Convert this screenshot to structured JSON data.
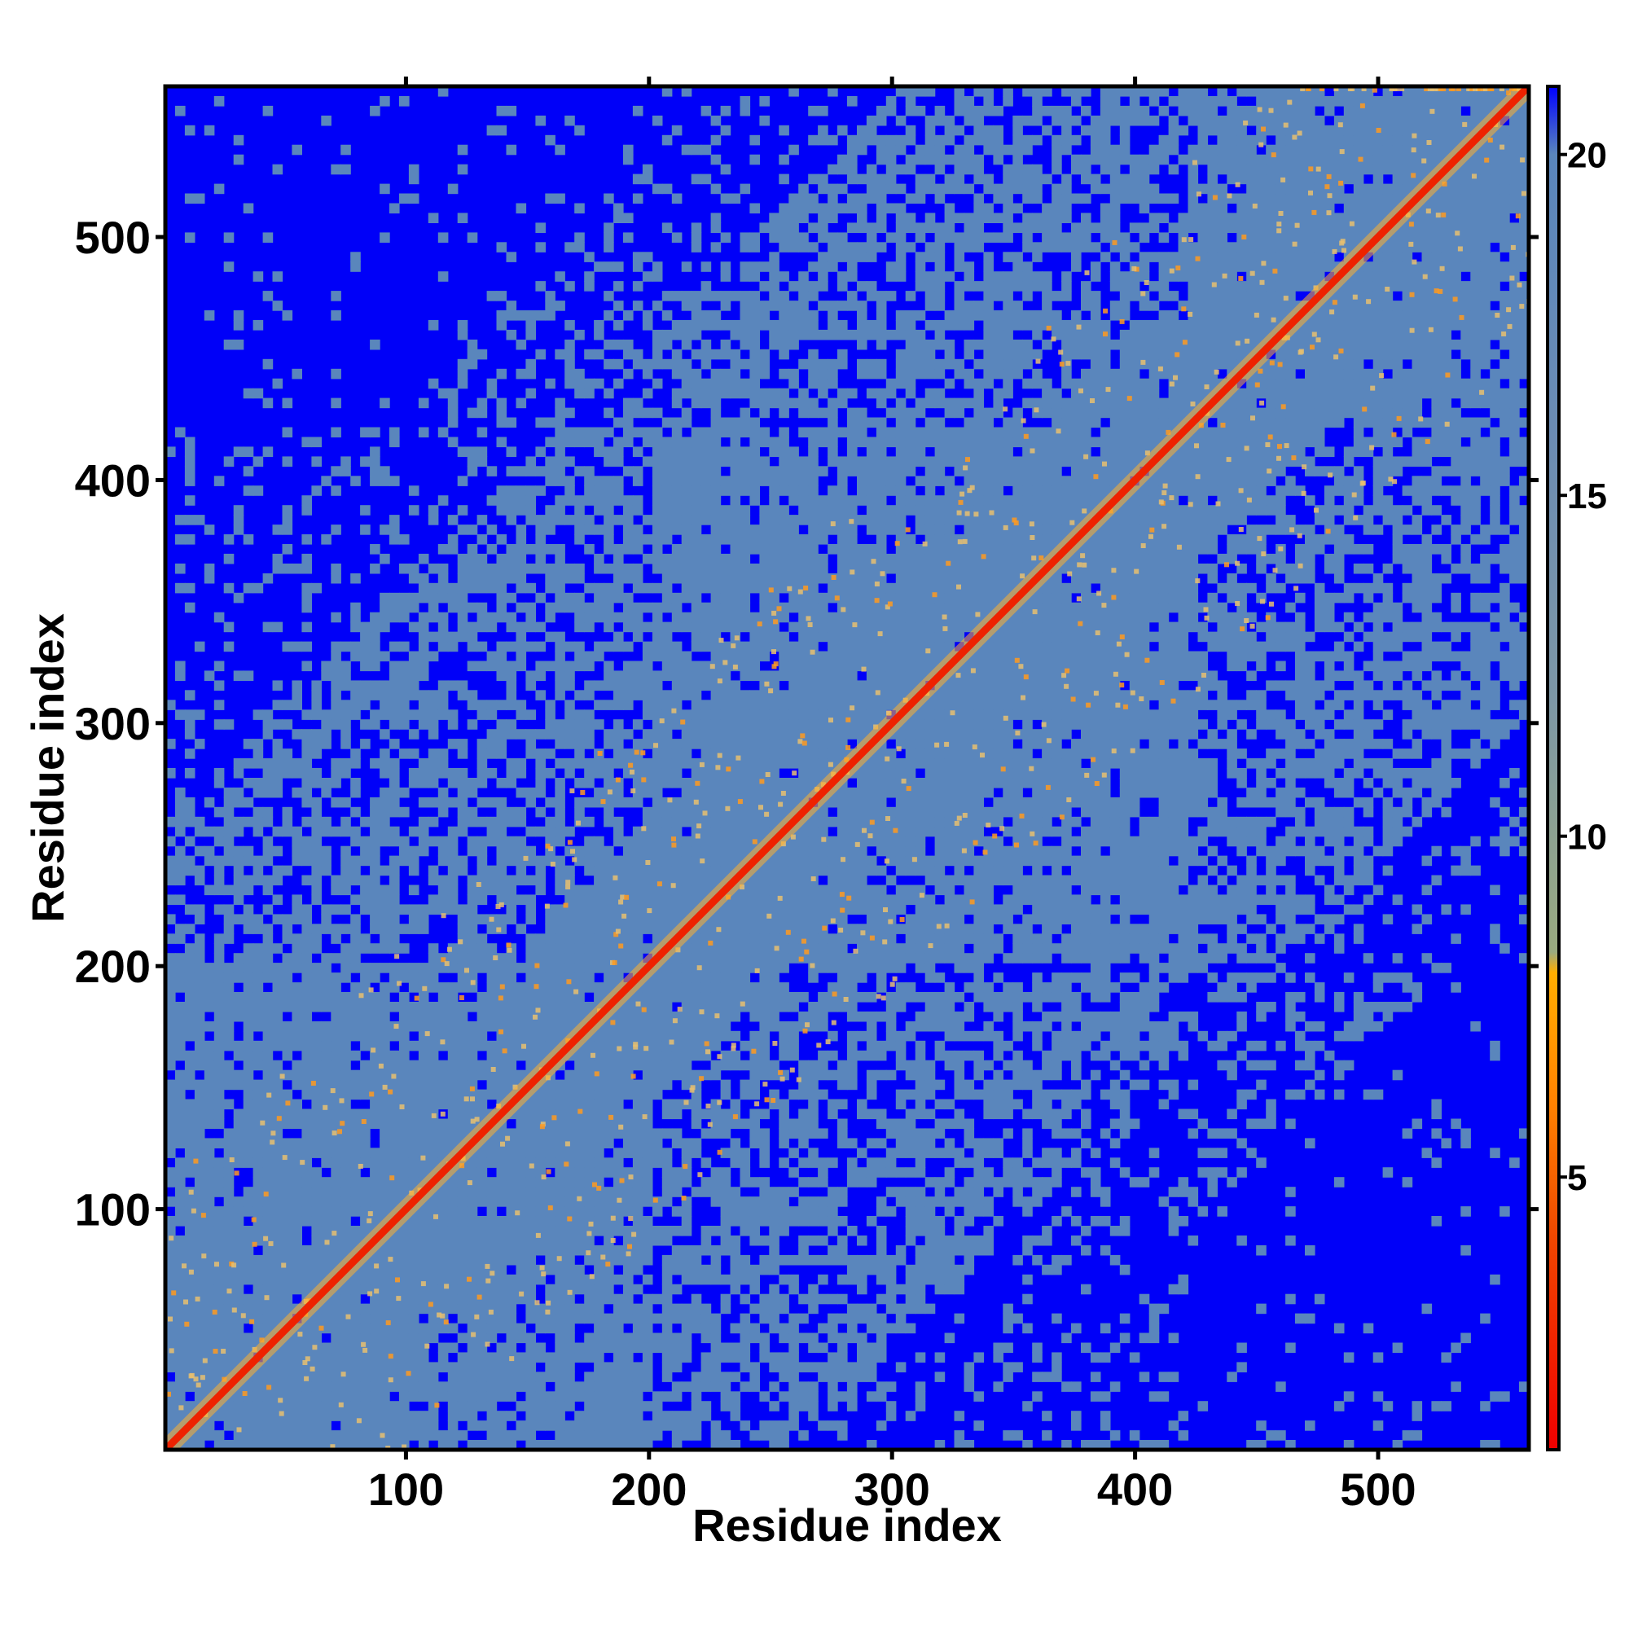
{
  "chart_data": {
    "type": "heatmap",
    "title": "",
    "xlabel": "Residue index",
    "ylabel": "Residue index",
    "xlim": [
      1,
      562
    ],
    "ylim": [
      1,
      562
    ],
    "x_ticks": [
      100,
      200,
      300,
      400,
      500
    ],
    "y_ticks": [
      100,
      200,
      300,
      400,
      500
    ],
    "x_tick_labels": [
      "100",
      "200",
      "300",
      "400",
      "500"
    ],
    "y_tick_labels": [
      "100",
      "200",
      "300",
      "400",
      "500"
    ],
    "colorbar": {
      "range": [
        1,
        21
      ],
      "ticks": [
        5,
        10,
        15,
        20
      ],
      "tick_labels": [
        "5",
        "10",
        "15",
        "20"
      ],
      "stops": [
        {
          "value": 1,
          "color": "#ee0000"
        },
        {
          "value": 4,
          "color": "#ee4400"
        },
        {
          "value": 6,
          "color": "#ff8000"
        },
        {
          "value": 8,
          "color": "#ffae00"
        },
        {
          "value": 8.3,
          "color": "#9aaa80"
        },
        {
          "value": 12,
          "color": "#7d97a6"
        },
        {
          "value": 16,
          "color": "#6b8cb4"
        },
        {
          "value": 20,
          "color": "#5a86bc"
        },
        {
          "value": 21,
          "color": "#0000ff"
        }
      ]
    },
    "domains": [
      {
        "start": 1,
        "end": 200
      },
      {
        "start": 200,
        "end": 420
      },
      {
        "start": 420,
        "end": 562
      }
    ],
    "background_color": "#0000f8",
    "medium_color": "#5a86bc",
    "contact_color": "#e8c070",
    "diagonal_color": "#ee2200"
  }
}
